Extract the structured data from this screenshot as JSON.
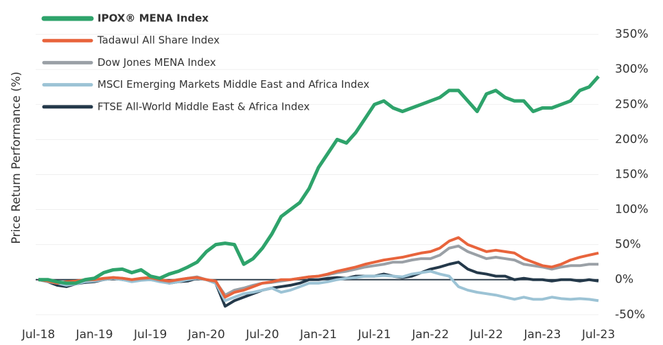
{
  "chart_data": {
    "type": "line",
    "y_label": "Price Return Performance (%)",
    "categories": [
      "Jul-18",
      null,
      null,
      null,
      null,
      null,
      "Jan-19",
      null,
      null,
      null,
      null,
      null,
      "Jul-19",
      null,
      null,
      null,
      null,
      null,
      "Jan-20",
      null,
      null,
      null,
      null,
      null,
      "Jul-20",
      null,
      null,
      null,
      null,
      null,
      "Jan-21",
      null,
      null,
      null,
      null,
      null,
      "Jul-21",
      null,
      null,
      null,
      null,
      null,
      "Jan-22",
      null,
      null,
      null,
      null,
      null,
      "Jul-22",
      null,
      null,
      null,
      null,
      null,
      "Jan-23",
      null,
      null,
      null,
      null,
      null,
      "Jul-23"
    ],
    "series": [
      {
        "name": "IPOX® MENA Index",
        "color": "#2ea36b",
        "values": [
          0,
          0,
          -3,
          -5,
          -5,
          0,
          2,
          10,
          14,
          15,
          10,
          14,
          5,
          2,
          8,
          12,
          18,
          25,
          40,
          50,
          52,
          50,
          22,
          30,
          45,
          65,
          90,
          100,
          110,
          130,
          160,
          180,
          200,
          195,
          210,
          230,
          250,
          255,
          245,
          240,
          245,
          250,
          255,
          260,
          270,
          270,
          255,
          240,
          265,
          270,
          260,
          255,
          255,
          240,
          245,
          245,
          250,
          255,
          270,
          275,
          290
        ]
      },
      {
        "name": "Tadawul All Share Index",
        "color": "#e8643c",
        "values": [
          0,
          -2,
          -5,
          -3,
          -2,
          0,
          0,
          2,
          3,
          2,
          0,
          2,
          3,
          0,
          -2,
          0,
          2,
          3,
          0,
          -2,
          -25,
          -18,
          -15,
          -10,
          -5,
          -3,
          0,
          0,
          2,
          4,
          5,
          8,
          12,
          15,
          18,
          22,
          25,
          28,
          30,
          32,
          35,
          38,
          40,
          45,
          55,
          60,
          50,
          45,
          40,
          42,
          40,
          38,
          30,
          25,
          20,
          18,
          22,
          28,
          32,
          35,
          38
        ]
      },
      {
        "name": "Dow Jones MENA Index",
        "color": "#9aa0a6",
        "values": [
          0,
          -2,
          -5,
          -3,
          -3,
          -1,
          0,
          1,
          3,
          2,
          0,
          1,
          2,
          -1,
          -3,
          0,
          2,
          4,
          0,
          -3,
          -22,
          -15,
          -12,
          -8,
          -5,
          -4,
          -2,
          0,
          2,
          4,
          5,
          7,
          10,
          12,
          15,
          18,
          20,
          22,
          25,
          25,
          28,
          30,
          30,
          35,
          45,
          48,
          40,
          35,
          30,
          32,
          30,
          28,
          22,
          20,
          18,
          15,
          18,
          20,
          20,
          22,
          22
        ]
      },
      {
        "name": "MSCI Emerging Markets Middle East and Africa Index",
        "color": "#9cc3d5",
        "values": [
          0,
          -3,
          -5,
          -8,
          -6,
          -3,
          -2,
          0,
          2,
          0,
          -3,
          -1,
          0,
          -3,
          -5,
          -3,
          0,
          2,
          0,
          -5,
          -30,
          -25,
          -20,
          -18,
          -15,
          -12,
          -18,
          -15,
          -10,
          -5,
          -5,
          -3,
          0,
          2,
          3,
          5,
          5,
          6,
          5,
          4,
          8,
          10,
          12,
          8,
          5,
          -10,
          -15,
          -18,
          -20,
          -22,
          -25,
          -28,
          -25,
          -28,
          -28,
          -25,
          -27,
          -28,
          -27,
          -28,
          -30
        ]
      },
      {
        "name": "FTSE All-World Middle East & Africa Index",
        "color": "#24394a",
        "values": [
          0,
          -3,
          -8,
          -10,
          -6,
          -4,
          -3,
          0,
          2,
          0,
          -2,
          0,
          0,
          -2,
          -5,
          -3,
          -2,
          2,
          0,
          -5,
          -38,
          -30,
          -25,
          -20,
          -15,
          -12,
          -10,
          -8,
          -5,
          0,
          0,
          2,
          3,
          2,
          5,
          5,
          5,
          8,
          5,
          3,
          5,
          10,
          15,
          18,
          22,
          25,
          15,
          10,
          8,
          5,
          5,
          0,
          2,
          0,
          0,
          -2,
          0,
          0,
          -2,
          0,
          -2
        ]
      }
    ],
    "ylim": [
      -58,
      355
    ],
    "yticks": [
      {
        "value": -50,
        "label": "-50%"
      },
      {
        "value": 0,
        "label": "0%"
      },
      {
        "value": 50,
        "label": "50%"
      },
      {
        "value": 100,
        "label": "100%"
      },
      {
        "value": 150,
        "label": "150%"
      },
      {
        "value": 200,
        "label": "200%"
      },
      {
        "value": 250,
        "label": "250%"
      },
      {
        "value": 300,
        "label": "300%"
      },
      {
        "value": 350,
        "label": "350%"
      }
    ],
    "grid": true
  }
}
